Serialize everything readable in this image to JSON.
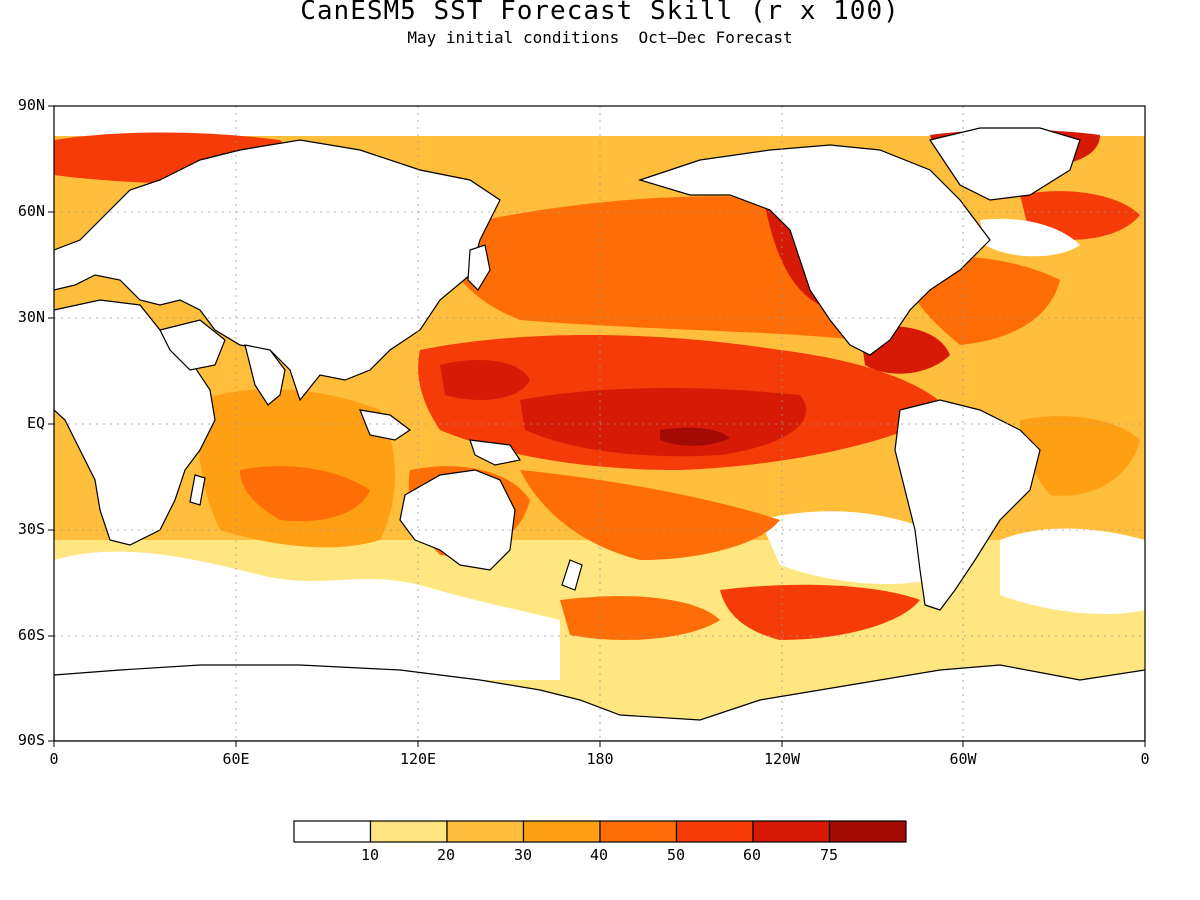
{
  "title": "CanESM5 SST Forecast Skill (r x 100)",
  "subtitle": "May initial conditions  Oct—Dec Forecast",
  "y_axis": {
    "ticks": [
      {
        "label": "90N",
        "lat": 90
      },
      {
        "label": "60N",
        "lat": 60
      },
      {
        "label": "30N",
        "lat": 30
      },
      {
        "label": "EQ",
        "lat": 0
      },
      {
        "label": "30S",
        "lat": -30
      },
      {
        "label": "60S",
        "lat": -60
      },
      {
        "label": "90S",
        "lat": -90
      }
    ]
  },
  "x_axis": {
    "ticks": [
      {
        "label": "0",
        "lon": 0
      },
      {
        "label": "60E",
        "lon": 60
      },
      {
        "label": "120E",
        "lon": 120
      },
      {
        "label": "180",
        "lon": 180
      },
      {
        "label": "120W",
        "lon": 240
      },
      {
        "label": "60W",
        "lon": 300
      },
      {
        "label": "0",
        "lon": 360
      }
    ]
  },
  "colorbar": {
    "colors": [
      "#ffffff",
      "#ffe680",
      "#ffbe3c",
      "#ff9f14",
      "#ff6e06",
      "#f43b08",
      "#d61a06",
      "#a30a04"
    ],
    "labels": [
      "10",
      "20",
      "30",
      "40",
      "50",
      "60",
      "75"
    ]
  },
  "colors": {
    "land": "#ffffff",
    "coast": "#000000",
    "grid": "#9a9a9a"
  }
}
